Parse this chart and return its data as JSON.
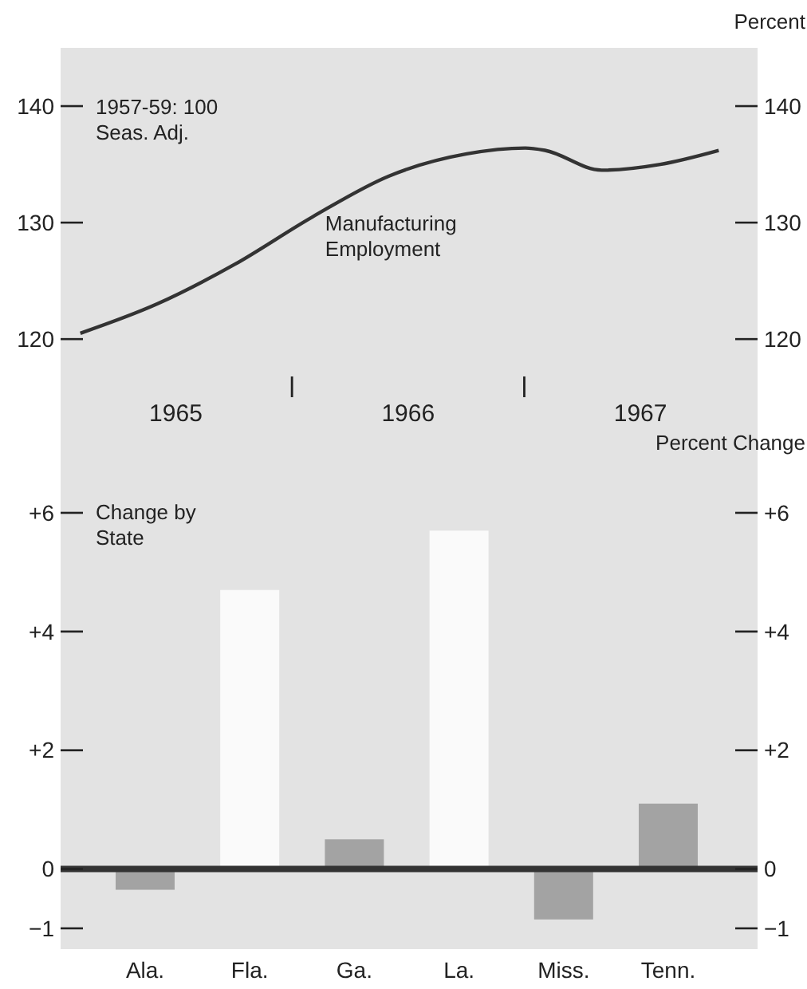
{
  "chart_data": [
    {
      "type": "line",
      "y2label": "Percent",
      "annotations": [
        "1957-59: 100\nSeas. Adj."
      ],
      "x": [
        "1965-02",
        "1965-06",
        "1965-10",
        "1966-02",
        "1966-06",
        "1966-10",
        "1967-01",
        "1967-02",
        "1967-05",
        "1967-08",
        "1967-11"
      ],
      "series": [
        {
          "name": "Manufacturing Employment",
          "color": "#333333",
          "values": [
            120.5,
            123,
            126.4,
            130.5,
            134,
            135.9,
            136.4,
            136.2,
            134.5,
            135,
            136.2
          ]
        }
      ],
      "xlim": [
        "1965-01-01",
        "1968-01-01"
      ],
      "xticks": [
        {
          "value": "1965-07-01",
          "label": "1965"
        },
        {
          "value": "1966-07-01",
          "label": "1966"
        },
        {
          "value": "1967-07-01",
          "label": "1967"
        }
      ],
      "ylim": [
        109.4,
        145
      ],
      "yticks": [
        120,
        130,
        140
      ],
      "y2lim": [
        109.4,
        145
      ],
      "y2ticks": [
        120,
        130,
        140
      ]
    },
    {
      "type": "bar",
      "y2label": "Percent Change",
      "annotations": [
        "Change by\nState"
      ],
      "categories": [
        "Ala.",
        "Fla.",
        "Ga.",
        "La.",
        "Miss.",
        "Tenn."
      ],
      "values": [
        -0.35,
        4.7,
        0.5,
        5.7,
        -0.85,
        1.1
      ],
      "colors": [
        "#a3a3a3",
        "#fafafa",
        "#a3a3a3",
        "#fafafa",
        "#a3a3a3",
        "#a3a3a3"
      ],
      "ylim": [
        -1.35,
        6.9
      ],
      "yticks": [
        {
          "value": -1,
          "label": "−1"
        },
        0,
        {
          "value": 2,
          "label": "+2"
        },
        {
          "value": 4,
          "label": "+4"
        },
        {
          "value": 6,
          "label": "+6"
        }
      ],
      "y2lim": [
        -1.35,
        6.9
      ],
      "y2ticks": [
        {
          "value": -1,
          "label": "−1"
        },
        0,
        {
          "value": 2,
          "label": "+2"
        },
        {
          "value": 4,
          "label": "+4"
        },
        {
          "value": 6,
          "label": "+6"
        }
      ],
      "ref_lines": [
        {
          "axis": "y",
          "value": 0,
          "color": "#333333"
        }
      ]
    }
  ]
}
